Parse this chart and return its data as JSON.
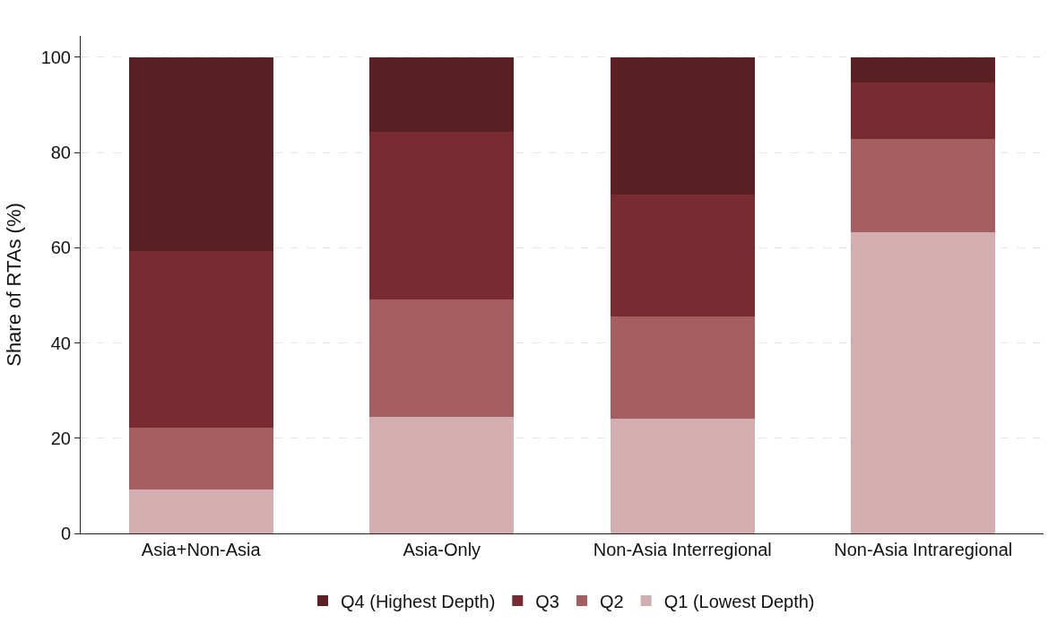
{
  "chart_data": {
    "type": "bar",
    "stacked": true,
    "ylabel": "Share of RTAs (%)",
    "categories": [
      "Asia+Non-Asia",
      "Asia-Only",
      "Non-Asia Interregional",
      "Non-Asia Intraregional"
    ],
    "series": [
      {
        "name": "Q1 (Lowest Depth)",
        "color": "#d2aeb1",
        "values": [
          9.2,
          24.4,
          24.1,
          63.2
        ]
      },
      {
        "name": "Q2",
        "color": "#a55e60",
        "values": [
          13.0,
          24.7,
          21.4,
          19.7
        ]
      },
      {
        "name": "Q3",
        "color": "#782b31",
        "values": [
          37.2,
          35.3,
          25.6,
          11.8
        ]
      },
      {
        "name": "Q4 (Highest Depth)",
        "color": "#5a2023",
        "values": [
          40.6,
          15.6,
          28.9,
          5.3
        ]
      }
    ],
    "ylim": [
      0,
      104.5
    ],
    "yticks": [
      0,
      20,
      40,
      60,
      80,
      100
    ],
    "grid": "y",
    "legend": "bottom"
  }
}
